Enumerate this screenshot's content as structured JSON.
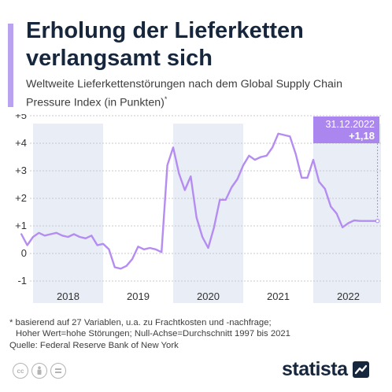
{
  "title": "Erholung der Lieferketten verlangsamt sich",
  "subtitle": "Weltweite Lieferkettenstörungen nach dem Global Supply Chain Pressure Index (in Punkten)",
  "subtitle_marker": "*",
  "footnote": {
    "line1": "* basierend auf 27 Variablen, u.a. zu Frachtkosten und -nachfrage;",
    "line2": "Hoher Wert=hohe Störungen; Null-Achse=Durchschnitt 1997 bis 2021"
  },
  "source": "Quelle: Federal Reserve Bank of New York",
  "brand": "statista",
  "license_icons": [
    "cc-icon",
    "person-icon",
    "equal-icon"
  ],
  "colors": {
    "accent": "#b9a3f0",
    "line": "#b58cf2",
    "callout": "#ab86ef",
    "band": "#e9eef6",
    "title": "#16263d"
  },
  "chart_data": {
    "type": "line",
    "title": "",
    "xlabel": "",
    "ylabel": "",
    "ylim": [
      -1,
      5
    ],
    "yticks": [
      {
        "value": 5,
        "label": "+5"
      },
      {
        "value": 4,
        "label": "+4"
      },
      {
        "value": 3,
        "label": "+3"
      },
      {
        "value": 2,
        "label": "+2"
      },
      {
        "value": 1,
        "label": "+1"
      },
      {
        "value": 0,
        "label": "0"
      },
      {
        "value": -1,
        "label": "-1"
      }
    ],
    "year_labels": [
      "2018",
      "2019",
      "2020",
      "2021",
      "2022"
    ],
    "shaded_years": [
      "2018",
      "2020",
      "2022"
    ],
    "grid": true,
    "callout": {
      "date": "31.12.2022",
      "value_label": "+1,18"
    },
    "series": [
      {
        "name": "",
        "x": [
          "2017-11",
          "2017-12",
          "2018-01",
          "2018-02",
          "2018-03",
          "2018-04",
          "2018-05",
          "2018-06",
          "2018-07",
          "2018-08",
          "2018-09",
          "2018-10",
          "2018-11",
          "2018-12",
          "2019-01",
          "2019-02",
          "2019-03",
          "2019-04",
          "2019-05",
          "2019-06",
          "2019-07",
          "2019-08",
          "2019-09",
          "2019-10",
          "2019-11",
          "2019-12",
          "2020-01",
          "2020-02",
          "2020-03",
          "2020-04",
          "2020-05",
          "2020-06",
          "2020-07",
          "2020-08",
          "2020-09",
          "2020-10",
          "2020-11",
          "2020-12",
          "2021-01",
          "2021-02",
          "2021-03",
          "2021-04",
          "2021-05",
          "2021-06",
          "2021-07",
          "2021-08",
          "2021-09",
          "2021-10",
          "2021-11",
          "2021-12",
          "2022-01",
          "2022-02",
          "2022-03",
          "2022-04",
          "2022-05",
          "2022-06",
          "2022-07",
          "2022-08",
          "2022-09",
          "2022-10",
          "2022-11",
          "2022-12"
        ],
        "values": [
          0.7,
          0.3,
          0.6,
          0.75,
          0.65,
          0.7,
          0.75,
          0.65,
          0.6,
          0.7,
          0.6,
          0.55,
          0.65,
          0.3,
          0.35,
          0.15,
          -0.5,
          -0.55,
          -0.45,
          -0.2,
          0.25,
          0.15,
          0.2,
          0.15,
          0.05,
          3.2,
          3.85,
          2.9,
          2.3,
          2.8,
          1.3,
          0.6,
          0.2,
          0.95,
          1.95,
          1.95,
          2.4,
          2.7,
          3.2,
          3.55,
          3.4,
          3.5,
          3.55,
          3.85,
          4.35,
          4.3,
          4.25,
          3.6,
          2.75,
          2.75,
          3.4,
          2.6,
          2.35,
          1.7,
          1.45,
          0.95,
          1.1,
          1.2,
          1.18,
          1.18,
          1.18,
          1.18
        ]
      }
    ]
  }
}
